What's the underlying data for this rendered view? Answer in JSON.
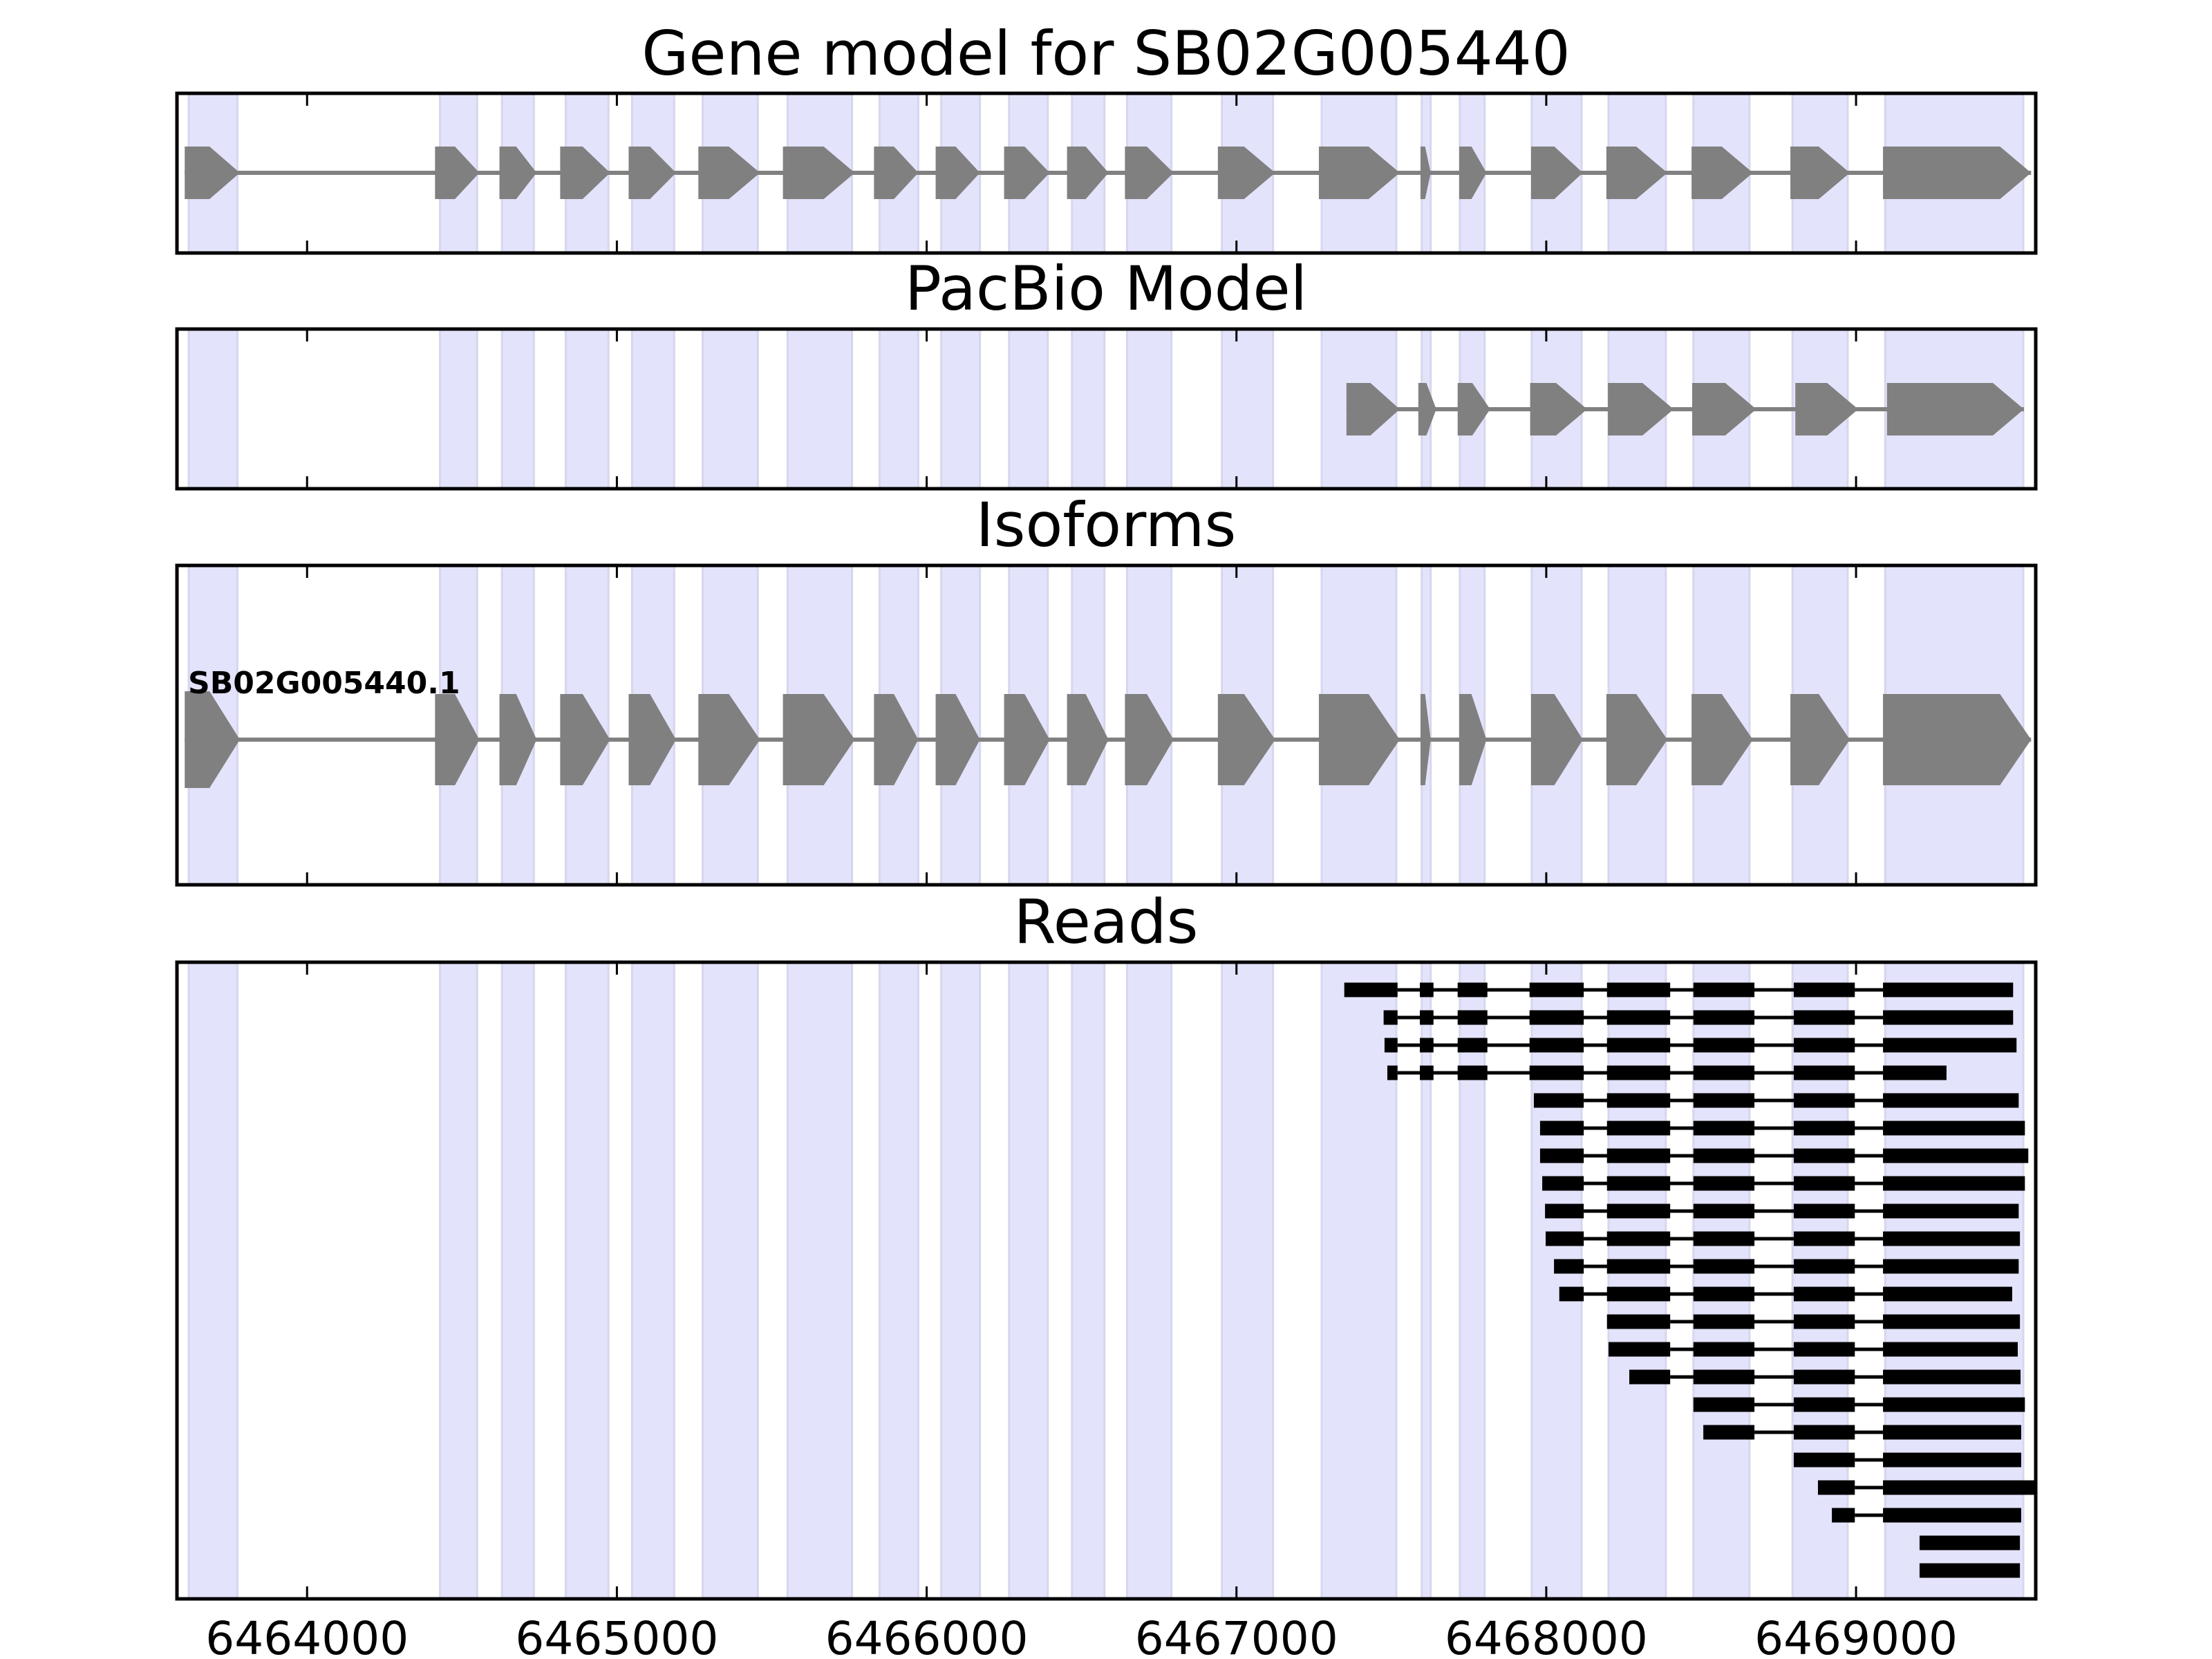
{
  "chart_data": {
    "type": "gene-track",
    "title": "Gene model for SB02G005440",
    "xlim": [
      6463580,
      6469580
    ],
    "xticks": [
      6464000,
      6465000,
      6466000,
      6467000,
      6468000,
      6469000
    ],
    "xtick_labels": [
      "6464000",
      "6465000",
      "6466000",
      "6467000",
      "6468000",
      "6469000"
    ],
    "colors": {
      "exon_band": "#e3e3fb",
      "band_edge": "#d6d6ee",
      "model_feature": "#808080",
      "intron": "#808080",
      "read": "#000000",
      "axis": "#000000"
    },
    "highlight_bands": [
      [
        6463618,
        6463775
      ],
      [
        6464429,
        6464549
      ],
      [
        6464629,
        6464732
      ],
      [
        6464835,
        6464973
      ],
      [
        6465049,
        6465185
      ],
      [
        6465277,
        6465455
      ],
      [
        6465551,
        6465759
      ],
      [
        6465848,
        6465973
      ],
      [
        6466047,
        6466172
      ],
      [
        6466266,
        6466391
      ],
      [
        6466469,
        6466574
      ],
      [
        6466647,
        6466790
      ],
      [
        6466953,
        6467118
      ],
      [
        6467275,
        6467516
      ],
      [
        6467598,
        6467627
      ],
      [
        6467721,
        6467801
      ],
      [
        6467953,
        6468114
      ],
      [
        6468201,
        6468386
      ],
      [
        6468475,
        6468656
      ],
      [
        6468795,
        6468973
      ],
      [
        6469094,
        6469540
      ]
    ],
    "panels": [
      {
        "id": "gene-model",
        "title": "Gene model for SB02G005440",
        "strand": "+",
        "exons": [
          [
            6463605,
            6463783
          ],
          [
            6464413,
            6464556
          ],
          [
            6464621,
            6464741
          ],
          [
            6464817,
            6464978
          ],
          [
            6465038,
            6465191
          ],
          [
            6465263,
            6465462
          ],
          [
            6465536,
            6465768
          ],
          [
            6465830,
            6465973
          ],
          [
            6466029,
            6466172
          ],
          [
            6466250,
            6466397
          ],
          [
            6466453,
            6466587
          ],
          [
            6466640,
            6466797
          ],
          [
            6466940,
            6467125
          ],
          [
            6467266,
            6467527
          ],
          [
            6467594,
            6467627
          ],
          [
            6467719,
            6467807
          ],
          [
            6467951,
            6468118
          ],
          [
            6468194,
            6468391
          ],
          [
            6468469,
            6468667
          ],
          [
            6468788,
            6468980
          ],
          [
            6469087,
            6469565
          ]
        ]
      },
      {
        "id": "pacbio-model",
        "title": "PacBio Model",
        "strand": "+",
        "exons": [
          [
            6467355,
            6467527
          ],
          [
            6467587,
            6467645
          ],
          [
            6467714,
            6467819
          ],
          [
            6467948,
            6468132
          ],
          [
            6468199,
            6468411
          ],
          [
            6468471,
            6468678
          ],
          [
            6468804,
            6469007
          ],
          [
            6469100,
            6469542
          ]
        ]
      },
      {
        "id": "isoforms",
        "title": "Isoforms",
        "isoform_label": "SB02G005440.1",
        "strand": "+",
        "exons": [
          [
            6463605,
            6463783
          ],
          [
            6464413,
            6464556
          ],
          [
            6464621,
            6464741
          ],
          [
            6464817,
            6464978
          ],
          [
            6465038,
            6465191
          ],
          [
            6465263,
            6465462
          ],
          [
            6465536,
            6465768
          ],
          [
            6465830,
            6465973
          ],
          [
            6466029,
            6466172
          ],
          [
            6466250,
            6466397
          ],
          [
            6466453,
            6466587
          ],
          [
            6466640,
            6466797
          ],
          [
            6466940,
            6467125
          ],
          [
            6467266,
            6467527
          ],
          [
            6467594,
            6467627
          ],
          [
            6467719,
            6467807
          ],
          [
            6467951,
            6468118
          ],
          [
            6468194,
            6468391
          ],
          [
            6468469,
            6468667
          ],
          [
            6468788,
            6468980
          ],
          [
            6469087,
            6469565
          ]
        ]
      },
      {
        "id": "reads",
        "title": "Reads",
        "reads": [
          [
            [
              6467348,
              6467520
            ],
            [
              6467592,
              6467636
            ],
            [
              6467714,
              6467810
            ],
            [
              6467946,
              6468121
            ],
            [
              6468196,
              6468400
            ],
            [
              6468475,
              6468672
            ],
            [
              6468799,
              6468996
            ],
            [
              6469087,
              6469507
            ]
          ],
          [
            [
              6467475,
              6467520
            ],
            [
              6467592,
              6467636
            ],
            [
              6467714,
              6467810
            ],
            [
              6467946,
              6468121
            ],
            [
              6468196,
              6468400
            ],
            [
              6468475,
              6468672
            ],
            [
              6468799,
              6468996
            ],
            [
              6469087,
              6469507
            ]
          ],
          [
            [
              6467478,
              6467520
            ],
            [
              6467592,
              6467636
            ],
            [
              6467714,
              6467810
            ],
            [
              6467946,
              6468121
            ],
            [
              6468196,
              6468400
            ],
            [
              6468475,
              6468672
            ],
            [
              6468799,
              6468996
            ],
            [
              6469087,
              6469518
            ]
          ],
          [
            [
              6467487,
              6467520
            ],
            [
              6467592,
              6467636
            ],
            [
              6467714,
              6467810
            ],
            [
              6467946,
              6468121
            ],
            [
              6468196,
              6468400
            ],
            [
              6468475,
              6468672
            ],
            [
              6468799,
              6468996
            ],
            [
              6469087,
              6469292
            ]
          ],
          [
            [
              6467960,
              6468121
            ],
            [
              6468196,
              6468400
            ],
            [
              6468475,
              6468672
            ],
            [
              6468799,
              6468996
            ],
            [
              6469087,
              6469525
            ]
          ],
          [
            [
              6467980,
              6468121
            ],
            [
              6468196,
              6468400
            ],
            [
              6468475,
              6468672
            ],
            [
              6468799,
              6468996
            ],
            [
              6469087,
              6469545
            ]
          ],
          [
            [
              6467980,
              6468121
            ],
            [
              6468196,
              6468400
            ],
            [
              6468475,
              6468672
            ],
            [
              6468799,
              6468996
            ],
            [
              6469087,
              6469556
            ]
          ],
          [
            [
              6467987,
              6468121
            ],
            [
              6468196,
              6468400
            ],
            [
              6468475,
              6468672
            ],
            [
              6468799,
              6468996
            ],
            [
              6469087,
              6469545
            ]
          ],
          [
            [
              6467996,
              6468121
            ],
            [
              6468196,
              6468400
            ],
            [
              6468475,
              6468672
            ],
            [
              6468799,
              6468996
            ],
            [
              6469087,
              6469525
            ]
          ],
          [
            [
              6467998,
              6468121
            ],
            [
              6468196,
              6468400
            ],
            [
              6468475,
              6468672
            ],
            [
              6468799,
              6468996
            ],
            [
              6469087,
              6469529
            ]
          ],
          [
            [
              6468025,
              6468121
            ],
            [
              6468196,
              6468400
            ],
            [
              6468475,
              6468672
            ],
            [
              6468799,
              6468996
            ],
            [
              6469087,
              6469525
            ]
          ],
          [
            [
              6468042,
              6468121
            ],
            [
              6468196,
              6468400
            ],
            [
              6468475,
              6468672
            ],
            [
              6468799,
              6468996
            ],
            [
              6469087,
              6469504
            ]
          ],
          [
            [
              6468196,
              6468400
            ],
            [
              6468475,
              6468672
            ],
            [
              6468799,
              6468996
            ],
            [
              6469087,
              6469529
            ]
          ],
          [
            [
              6468201,
              6468400
            ],
            [
              6468475,
              6468672
            ],
            [
              6468799,
              6468996
            ],
            [
              6469087,
              6469522
            ]
          ],
          [
            [
              6468268,
              6468400
            ],
            [
              6468475,
              6468672
            ],
            [
              6468799,
              6468996
            ],
            [
              6469087,
              6469531
            ]
          ],
          [
            [
              6468475,
              6468672
            ],
            [
              6468799,
              6468996
            ],
            [
              6469087,
              6469545
            ]
          ],
          [
            [
              6468507,
              6468672
            ],
            [
              6468799,
              6468996
            ],
            [
              6469087,
              6469533
            ]
          ],
          [
            [
              6468799,
              6468996
            ],
            [
              6469087,
              6469533
            ]
          ],
          [
            [
              6468877,
              6468996
            ],
            [
              6469087,
              6469620
            ]
          ],
          [
            [
              6468922,
              6468996
            ],
            [
              6469087,
              6469533
            ]
          ],
          [
            [
              6469205,
              6469529
            ]
          ],
          [
            [
              6469205,
              6469529
            ]
          ]
        ]
      }
    ]
  }
}
